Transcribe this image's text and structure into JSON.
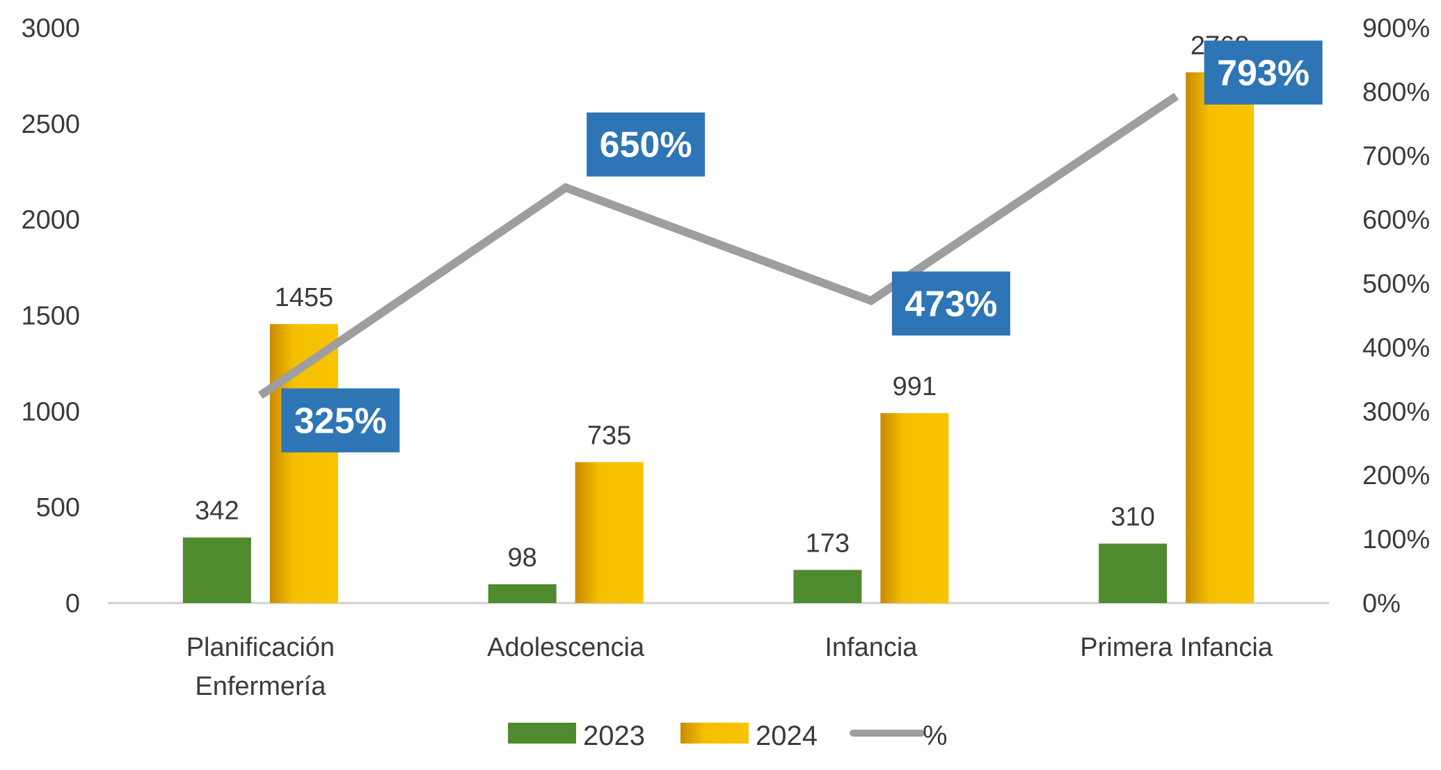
{
  "chart_data": {
    "type": "bar",
    "title": "",
    "xlabel": "",
    "ylabel": "",
    "categories": [
      [
        "Planificación",
        "Enfermería"
      ],
      [
        "Adolescencia"
      ],
      [
        "Infancia"
      ],
      [
        "Primera Infancia"
      ]
    ],
    "series": [
      {
        "name": "2023",
        "type": "bar",
        "axis": "left",
        "color": "#4f8b2e",
        "values": [
          342,
          98,
          173,
          310
        ]
      },
      {
        "name": "2024",
        "type": "bar",
        "axis": "left",
        "color": "#f2b705",
        "values": [
          1455,
          735,
          991,
          2768
        ]
      },
      {
        "name": "%",
        "type": "line",
        "axis": "right",
        "color": "#9e9e9e",
        "values": [
          325,
          650,
          473,
          793
        ],
        "labels": [
          "325%",
          "650%",
          "473%",
          "793%"
        ]
      }
    ],
    "ylim": [
      0,
      3000
    ],
    "y_ticks": [
      "0",
      "500",
      "1000",
      "1500",
      "2000",
      "2500",
      "3000"
    ],
    "y2lim": [
      0,
      900
    ],
    "y2_ticks": [
      "0%",
      "100%",
      "200%",
      "300%",
      "400%",
      "500%",
      "600%",
      "700%",
      "800%",
      "900%"
    ],
    "data_labels": {
      "2023": [
        "342",
        "98",
        "173",
        "310"
      ],
      "2024": [
        "1455",
        "735",
        "991",
        "2768"
      ]
    },
    "label_box_color": "#2e75b6",
    "grid": false,
    "legend": {
      "position": "bottom",
      "items": [
        "2023",
        "2024",
        "%"
      ]
    }
  }
}
